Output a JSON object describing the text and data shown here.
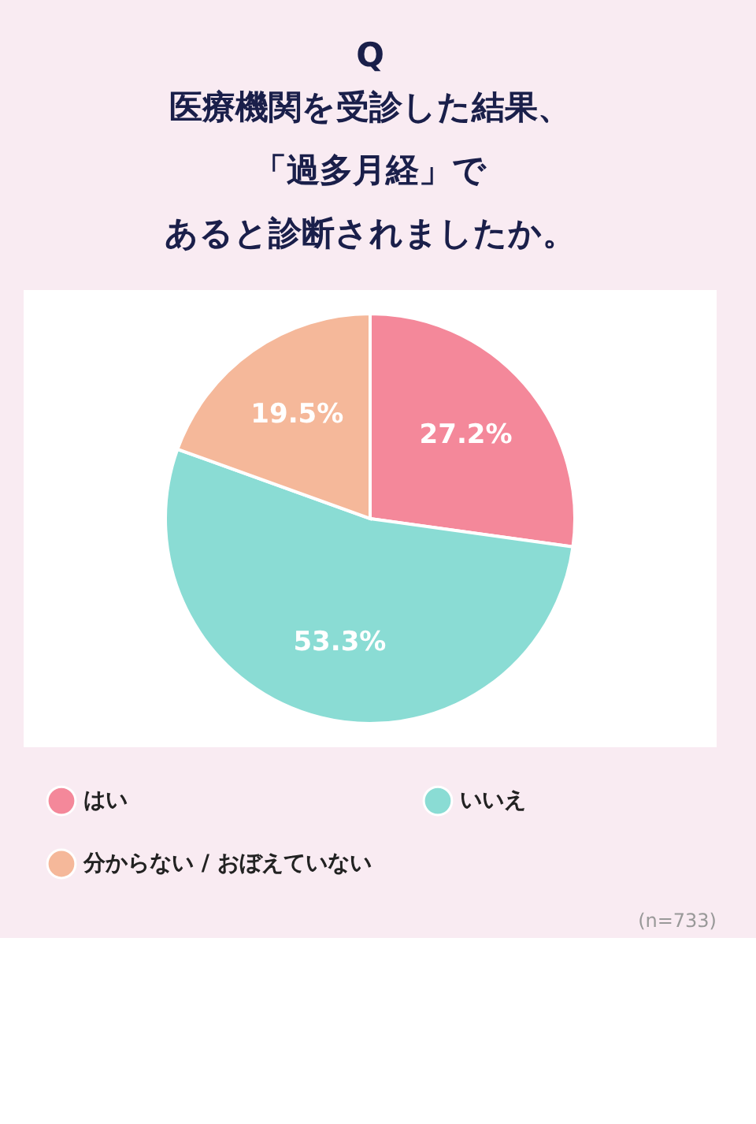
{
  "chart_data": {
    "type": "pie",
    "title": "Q",
    "subtitle": "医療機関を受診した結果、「過多月経」であると診断されましたか。",
    "categories": [
      "はい",
      "いいえ",
      "分からない / おぼえていない"
    ],
    "values": [
      27.2,
      53.3,
      19.5
    ],
    "colors": [
      "#f4889a",
      "#8adcd4",
      "#f5b89a"
    ],
    "value_labels": [
      "27.2%",
      "53.3%",
      "19.5%"
    ],
    "legend": "bottom",
    "annotations": [
      "(n=733)"
    ]
  }
}
